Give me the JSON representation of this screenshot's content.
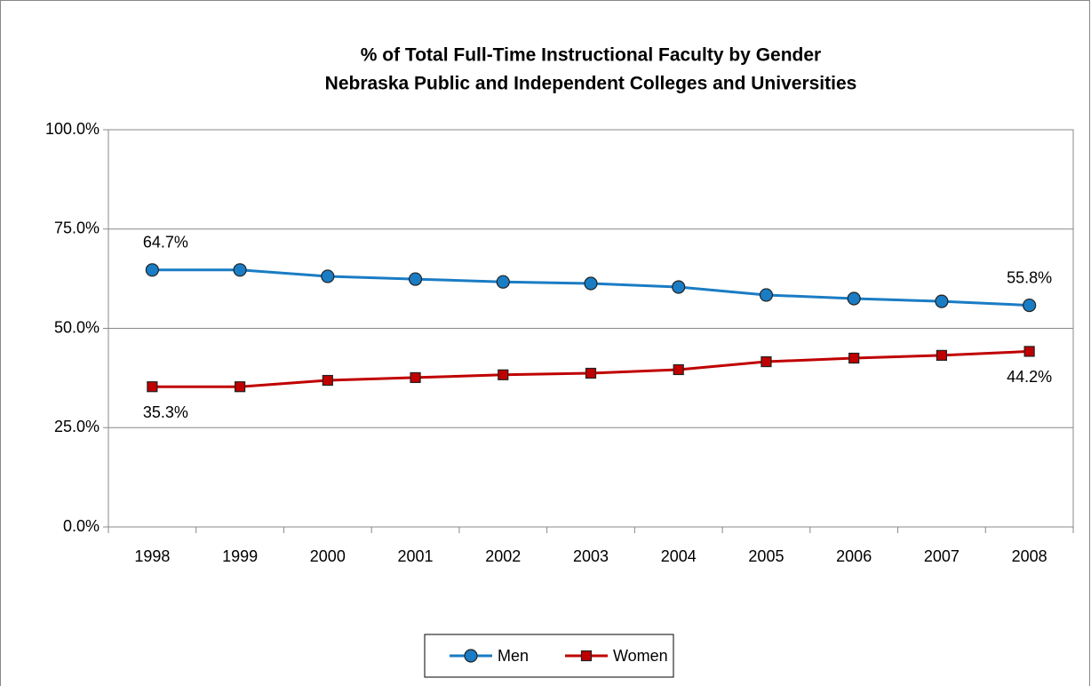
{
  "chart_data": {
    "type": "line",
    "title": "% of Total Full-Time Instructional Faculty by Gender",
    "subtitle": "Nebraska Public and Independent Colleges and Universities",
    "categories": [
      "1998",
      "1999",
      "2000",
      "2001",
      "2002",
      "2003",
      "2004",
      "2005",
      "2006",
      "2007",
      "2008"
    ],
    "series": [
      {
        "name": "Men",
        "color": "#1a7cc4",
        "marker": "circle",
        "values": [
          64.7,
          64.7,
          63.1,
          62.4,
          61.7,
          61.3,
          60.4,
          58.4,
          57.5,
          56.8,
          55.8
        ],
        "value_labels": [
          "64.7%",
          null,
          null,
          null,
          null,
          null,
          null,
          null,
          null,
          null,
          "55.8%"
        ]
      },
      {
        "name": "Women",
        "color": "#c00000",
        "marker": "square",
        "values": [
          35.3,
          35.3,
          36.9,
          37.6,
          38.3,
          38.7,
          39.6,
          41.6,
          42.5,
          43.2,
          44.2
        ],
        "value_labels": [
          "35.3%",
          null,
          null,
          null,
          null,
          null,
          null,
          null,
          null,
          null,
          "44.2%"
        ]
      }
    ],
    "ylim": [
      0,
      100
    ],
    "yticks": [
      {
        "value": 0,
        "label": "0.0%"
      },
      {
        "value": 25,
        "label": "25.0%"
      },
      {
        "value": 50,
        "label": "50.0%"
      },
      {
        "value": 75,
        "label": "75.0%"
      },
      {
        "value": 100,
        "label": "100.0%"
      }
    ],
    "grid": true,
    "legend": "bottom"
  }
}
